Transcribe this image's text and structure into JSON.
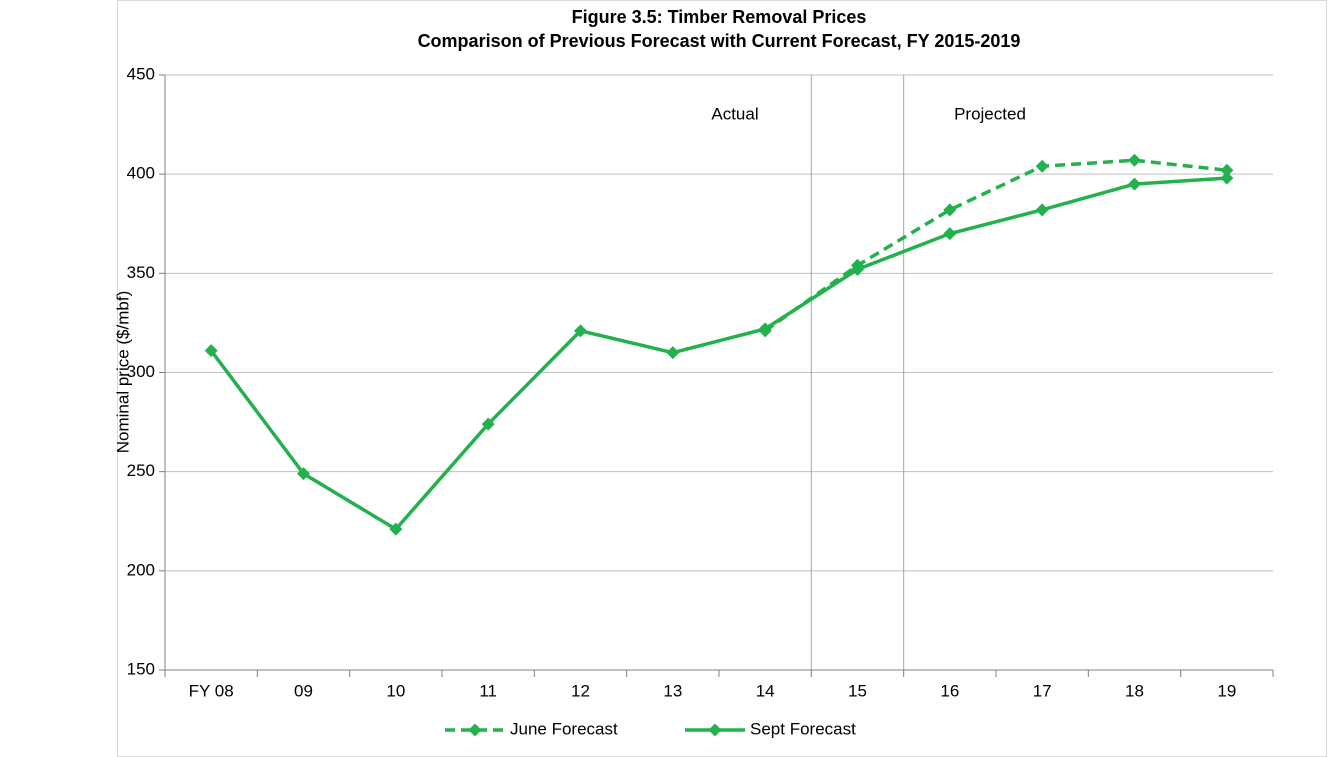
{
  "chart_data": {
    "type": "line",
    "title": "Figure 3.5:  Timber Removal Prices",
    "subtitle": "Comparison of Previous Forecast with Current Forecast, FY 2015-2019",
    "y_label": "Nominal price ($/mbf)",
    "categories": [
      "FY 08",
      "09",
      "10",
      "11",
      "12",
      "13",
      "14",
      "15",
      "16",
      "17",
      "18",
      "19"
    ],
    "series": [
      {
        "name": "June Forecast",
        "color": "#22b14c",
        "dashed": true,
        "values": [
          null,
          null,
          null,
          null,
          null,
          null,
          321,
          354,
          382,
          404,
          407,
          402
        ]
      },
      {
        "name": "Sept Forecast",
        "color": "#22b14c",
        "dashed": false,
        "values": [
          311,
          249,
          221,
          274,
          321,
          310,
          322,
          352,
          370,
          382,
          395,
          398
        ]
      }
    ],
    "annotations": [
      "Actual",
      "Projected"
    ],
    "ylim": [
      150,
      450
    ],
    "yticks": [
      150,
      200,
      250,
      300,
      350,
      400,
      450
    ],
    "grid": true,
    "legend": "bottom"
  }
}
